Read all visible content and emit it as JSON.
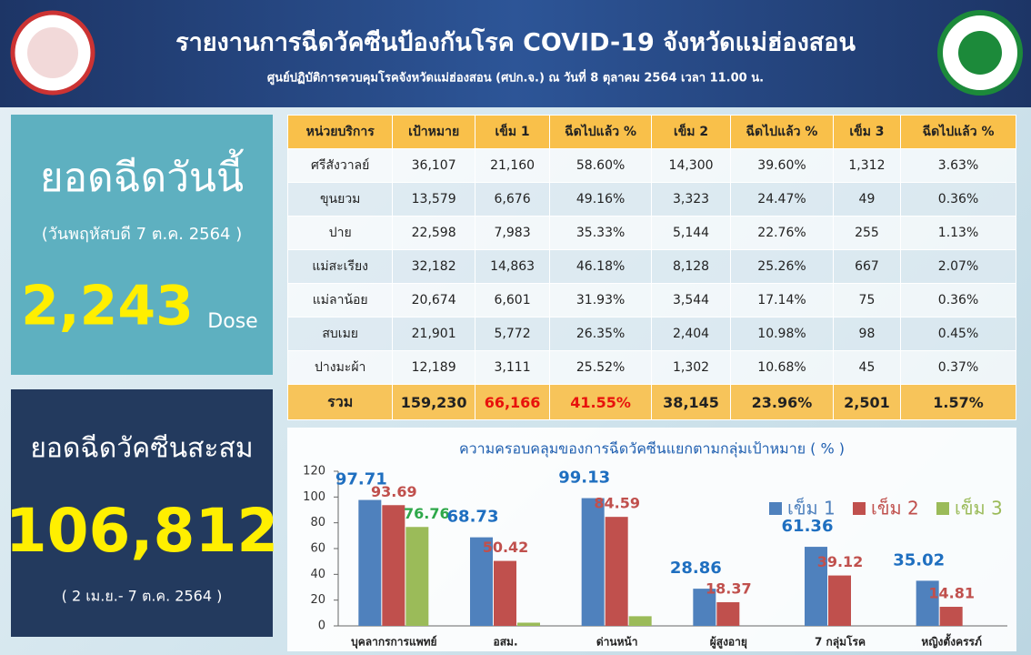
{
  "header": {
    "title": "รายงานการฉีดวัคซีนป้องกันโรค COVID-19 จังหวัดแม่ฮ่องสอน",
    "subtitle": "ศูนย์ปฏิบัติการควบคุมโรคจังหวัดแม่ฮ่องสอน (ศปก.จ.) ณ วันที่ 8 ตุลาคม 2564 เวลา 11.00 น."
  },
  "today": {
    "label": "ยอดฉีดวันนี้",
    "date": "(วันพฤหัสบดี 7 ต.ค. 2564 )",
    "value": "2,243",
    "unit": "Dose"
  },
  "cumulative": {
    "label": "ยอดฉีดวัคซีนสะสม",
    "value": "106,812",
    "period": "( 2 เม.ย.- 7 ต.ค. 2564 )"
  },
  "table": {
    "columns": [
      "หน่วยบริการ",
      "เป้าหมาย",
      "เข็ม 1",
      "ฉีดไปแล้ว  %",
      "เข็ม 2",
      "ฉีดไปแล้ว  %",
      "เข็ม 3",
      "ฉีดไปแล้ว  %"
    ],
    "rows": [
      [
        "ศรีสังวาลย์",
        "36,107",
        "21,160",
        "58.60%",
        "14,300",
        "39.60%",
        "1,312",
        "3.63%"
      ],
      [
        "ขุนยวม",
        "13,579",
        "6,676",
        "49.16%",
        "3,323",
        "24.47%",
        "49",
        "0.36%"
      ],
      [
        "ปาย",
        "22,598",
        "7,983",
        "35.33%",
        "5,144",
        "22.76%",
        "255",
        "1.13%"
      ],
      [
        "แม่สะเรียง",
        "32,182",
        "14,863",
        "46.18%",
        "8,128",
        "25.26%",
        "667",
        "2.07%"
      ],
      [
        "แม่ลาน้อย",
        "20,674",
        "6,601",
        "31.93%",
        "3,544",
        "17.14%",
        "75",
        "0.36%"
      ],
      [
        "สบเมย",
        "21,901",
        "5,772",
        "26.35%",
        "2,404",
        "10.98%",
        "98",
        "0.45%"
      ],
      [
        "ปางมะผ้า",
        "12,189",
        "3,111",
        "25.52%",
        "1,302",
        "10.68%",
        "45",
        "0.37%"
      ]
    ],
    "total": [
      "รวม",
      "159,230",
      "66,166",
      "41.55%",
      "38,145",
      "23.96%",
      "2,501",
      "1.57%"
    ]
  },
  "chart_data": {
    "type": "bar",
    "title": "ความครอบคลุมของการฉีดวัคซีนแยกตามกลุ่มเป้าหมาย ( % )",
    "categories": [
      "บุคลากรการแพทย์",
      "อสม.",
      "ด่านหน้า",
      "ผู้สูงอายุ",
      "7 กลุ่มโรค",
      "หญิงตั้งครรภ์"
    ],
    "series": [
      {
        "name": "เข็ม 1",
        "color": "#4f81bd",
        "label_color": "#1f6fc0",
        "values": [
          97.71,
          68.73,
          99.13,
          28.86,
          61.36,
          35.02
        ]
      },
      {
        "name": "เข็ม 2",
        "color": "#c0504d",
        "label_color": "#c0504d",
        "values": [
          93.69,
          50.42,
          84.59,
          18.37,
          39.12,
          14.81
        ]
      },
      {
        "name": "เข็ม 3",
        "color": "#9bbb59",
        "label_color": "#2ea84a",
        "values": [
          76.76,
          2.5,
          7.5,
          0,
          0,
          0
        ],
        "value_labels": [
          "76.76",
          null,
          null,
          null,
          null,
          null
        ]
      }
    ],
    "ylim": [
      0,
      120
    ],
    "yticks": [
      0,
      20,
      40,
      60,
      80,
      100,
      120
    ],
    "legend": "upper right"
  }
}
